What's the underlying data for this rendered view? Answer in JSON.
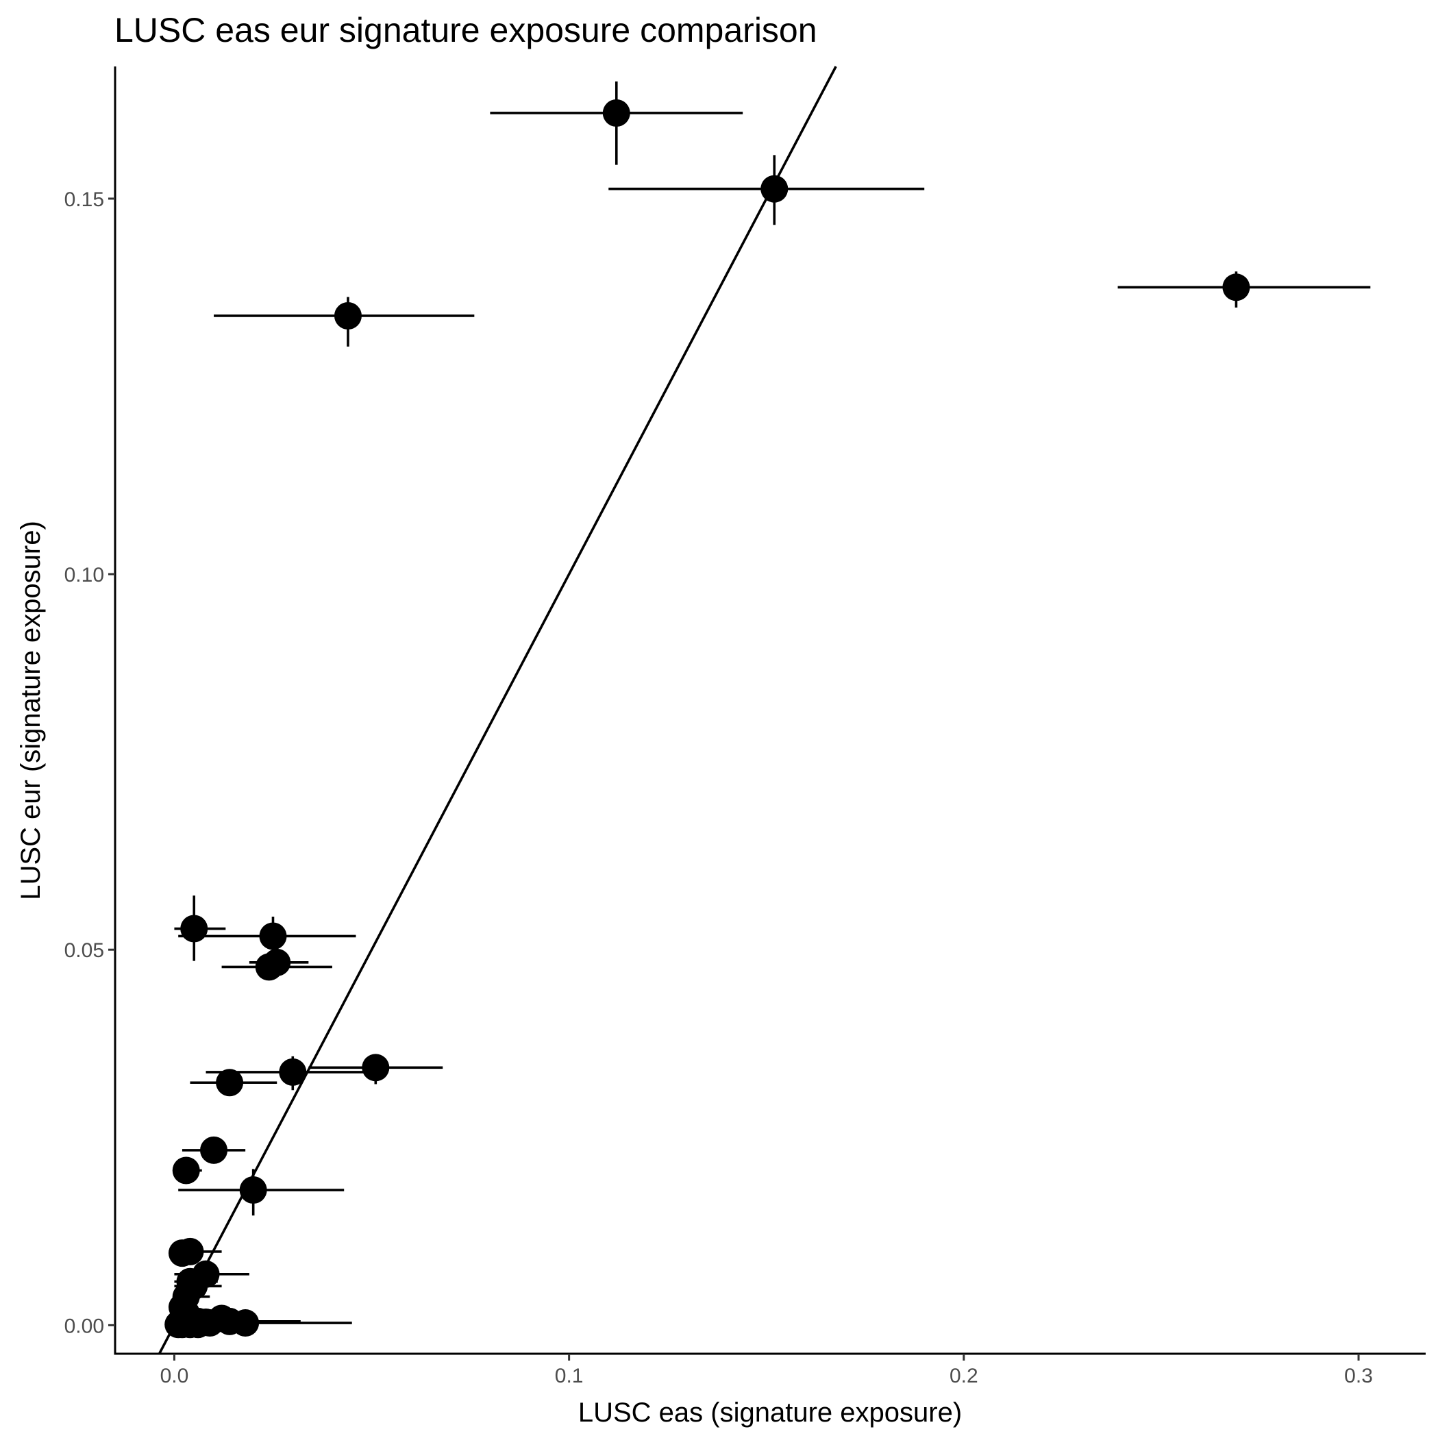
{
  "chart_data": {
    "type": "scatter",
    "title": "LUSC eas eur signature exposure comparison",
    "xlabel": "LUSC eas (signature exposure)",
    "ylabel": "LUSC eur (signature exposure)",
    "xlim": [
      -0.015,
      0.317
    ],
    "ylim": [
      -0.0038,
      0.1676
    ],
    "x_ticks": [
      {
        "value": 0.0,
        "label": "0.0"
      },
      {
        "value": 0.1,
        "label": "0.1"
      },
      {
        "value": 0.2,
        "label": "0.2"
      },
      {
        "value": 0.3,
        "label": "0.3"
      }
    ],
    "y_ticks": [
      {
        "value": 0.0,
        "label": "0.00"
      },
      {
        "value": 0.05,
        "label": "0.05"
      },
      {
        "value": 0.1,
        "label": "0.10"
      },
      {
        "value": 0.15,
        "label": "0.15"
      }
    ],
    "reference_line": {
      "intercept": 0.0,
      "slope": 1.0
    },
    "grid": false,
    "legend": "none",
    "points": [
      {
        "x": 0.112,
        "y": 0.1614,
        "x_err": [
          0.08,
          0.144
        ],
        "y_err": [
          0.1545,
          0.1656
        ]
      },
      {
        "x": 0.152,
        "y": 0.1513,
        "x_err": [
          0.11,
          0.19
        ],
        "y_err": [
          0.1465,
          0.1558
        ]
      },
      {
        "x": 0.269,
        "y": 0.1382,
        "x_err": [
          0.239,
          0.303
        ],
        "y_err": [
          0.1355,
          0.1403
        ]
      },
      {
        "x": 0.044,
        "y": 0.1344,
        "x_err": [
          0.01,
          0.076
        ],
        "y_err": [
          0.1303,
          0.1369
        ]
      },
      {
        "x": 0.005,
        "y": 0.0528,
        "x_err": [
          0.0,
          0.013
        ],
        "y_err": [
          0.0485,
          0.0572
        ]
      },
      {
        "x": 0.025,
        "y": 0.0518,
        "x_err": [
          0.001,
          0.046
        ],
        "y_err": [
          0.0462,
          0.0544
        ]
      },
      {
        "x": 0.026,
        "y": 0.0483,
        "x_err": [
          0.019,
          0.034
        ],
        "y_err": [
          0.0465,
          0.0495
        ]
      },
      {
        "x": 0.024,
        "y": 0.0477,
        "x_err": [
          0.012,
          0.04
        ],
        "y_err": [
          0.0465,
          0.0483
        ]
      },
      {
        "x": 0.051,
        "y": 0.0343,
        "x_err": [
          0.034,
          0.068
        ],
        "y_err": [
          0.0321,
          0.0361
        ]
      },
      {
        "x": 0.03,
        "y": 0.0337,
        "x_err": [
          0.008,
          0.053
        ],
        "y_err": [
          0.0313,
          0.0358
        ]
      },
      {
        "x": 0.014,
        "y": 0.0323,
        "x_err": [
          0.004,
          0.026
        ],
        "y_err": [
          0.0311,
          0.0335
        ]
      },
      {
        "x": 0.01,
        "y": 0.0233,
        "x_err": [
          0.002,
          0.018
        ],
        "y_err": [
          0.0223,
          0.0243
        ]
      },
      {
        "x": 0.003,
        "y": 0.0206,
        "x_err": [
          0.0,
          0.007
        ],
        "y_err": [
          0.0198,
          0.0214
        ]
      },
      {
        "x": 0.02,
        "y": 0.018,
        "x_err": [
          0.001,
          0.043
        ],
        "y_err": [
          0.0146,
          0.0208
        ]
      },
      {
        "x": 0.004,
        "y": 0.0098,
        "x_err": [
          0.0,
          0.012
        ],
        "y_err": [
          0.0092,
          0.0104
        ]
      },
      {
        "x": 0.002,
        "y": 0.0096,
        "x_err": [
          0.0,
          0.007
        ],
        "y_err": [
          0.0091,
          0.0101
        ]
      },
      {
        "x": 0.008,
        "y": 0.0068,
        "x_err": [
          0.0,
          0.019
        ],
        "y_err": [
          0.0062,
          0.0074
        ]
      },
      {
        "x": 0.004,
        "y": 0.0058,
        "x_err": [
          0.0,
          0.011
        ],
        "y_err": [
          0.0053,
          0.0063
        ]
      },
      {
        "x": 0.005,
        "y": 0.0052,
        "x_err": [
          0.0,
          0.012
        ],
        "y_err": [
          0.0047,
          0.0057
        ]
      },
      {
        "x": 0.003,
        "y": 0.0038,
        "x_err": [
          0.0,
          0.009
        ],
        "y_err": [
          0.0034,
          0.0042
        ]
      },
      {
        "x": 0.002,
        "y": 0.0024,
        "x_err": [
          0.0,
          0.006
        ],
        "y_err": [
          0.002,
          0.0028
        ]
      },
      {
        "x": 0.003,
        "y": 0.0016,
        "x_err": [
          0.0,
          0.007
        ],
        "y_err": [
          0.0012,
          0.002
        ]
      },
      {
        "x": 0.002,
        "y": 0.0008,
        "x_err": [
          0.0,
          0.006
        ],
        "y_err": [
          0.0005,
          0.0011
        ]
      },
      {
        "x": 0.004,
        "y": 0.0006,
        "x_err": [
          0.0,
          0.012
        ],
        "y_err": [
          0.0003,
          0.0009
        ]
      },
      {
        "x": 0.006,
        "y": 0.0005,
        "x_err": [
          0.0,
          0.013
        ],
        "y_err": [
          0.0002,
          0.0008
        ]
      },
      {
        "x": 0.008,
        "y": 0.0004,
        "x_err": [
          0.001,
          0.017
        ],
        "y_err": [
          0.0001,
          0.0007
        ]
      },
      {
        "x": 0.009,
        "y": 0.0003,
        "x_err": [
          0.002,
          0.017
        ],
        "y_err": [
          0.0001,
          0.0006
        ]
      },
      {
        "x": 0.012,
        "y": 0.0009,
        "x_err": [
          0.005,
          0.021
        ],
        "y_err": [
          0.0006,
          0.0012
        ]
      },
      {
        "x": 0.006,
        "y": 0.0001,
        "x_err": [
          0.0,
          0.013
        ],
        "y_err": [
          0.0,
          0.0003
        ]
      },
      {
        "x": 0.004,
        "y": 0.0001,
        "x_err": [
          0.0,
          0.011
        ],
        "y_err": [
          0.0,
          0.0003
        ]
      },
      {
        "x": 0.002,
        "y": 0.0001,
        "x_err": [
          0.0,
          0.006
        ],
        "y_err": [
          0.0,
          0.0003
        ]
      },
      {
        "x": 0.001,
        "y": 0.0001,
        "x_err": [
          0.0,
          0.005
        ],
        "y_err": [
          0.0,
          0.0003
        ]
      },
      {
        "x": 0.018,
        "y": 0.0003,
        "x_err": [
          0.003,
          0.045
        ],
        "y_err": [
          0.0,
          0.0006
        ]
      },
      {
        "x": 0.014,
        "y": 0.0005,
        "x_err": [
          0.004,
          0.032
        ],
        "y_err": [
          0.0002,
          0.0008
        ]
      }
    ]
  }
}
